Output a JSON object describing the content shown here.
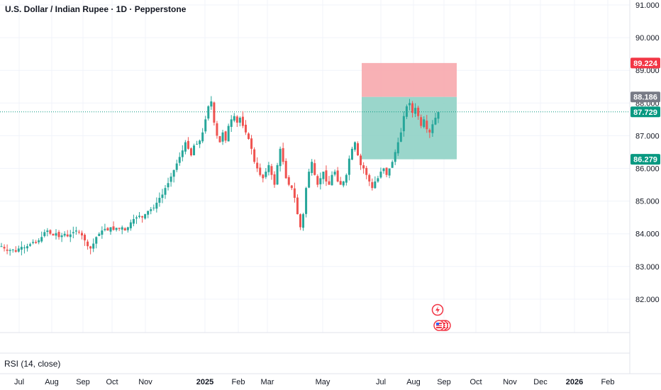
{
  "header": {
    "title": "U.S. Dollar / Indian Rupee · 1D · Pepperstone"
  },
  "indicator": {
    "label": "RSI (14, close)"
  },
  "colors": {
    "up": "#26a69a",
    "down": "#ef5350",
    "stop_zone": "#f7a9ad",
    "target_zone": "#8fd2c5",
    "stop_tag": "#f23645",
    "entry_tag": "#787b86",
    "current_tag": "#089981",
    "target_tag": "#089981"
  },
  "chart_data": {
    "type": "candlestick",
    "title": "U.S. Dollar / Indian Rupee · 1D · Pepperstone",
    "y_ticks": [
      "82.000",
      "83.000",
      "84.000",
      "85.000",
      "86.000",
      "87.000",
      "88.000",
      "89.000",
      "90.000",
      "91.000"
    ],
    "y_range": [
      81.0,
      91.0
    ],
    "x_ticks": [
      {
        "label": "Jul",
        "bold": false
      },
      {
        "label": "Aug",
        "bold": false
      },
      {
        "label": "Sep",
        "bold": false
      },
      {
        "label": "Oct",
        "bold": false
      },
      {
        "label": "Nov",
        "bold": false
      },
      {
        "label": "2025",
        "bold": true
      },
      {
        "label": "Feb",
        "bold": false
      },
      {
        "label": "Mar",
        "bold": false
      },
      {
        "label": "May",
        "bold": false
      },
      {
        "label": "Jul",
        "bold": false
      },
      {
        "label": "Aug",
        "bold": false
      },
      {
        "label": "Sep",
        "bold": false
      },
      {
        "label": "Oct",
        "bold": false
      },
      {
        "label": "Nov",
        "bold": false
      },
      {
        "label": "Dec",
        "bold": false
      },
      {
        "label": "2026",
        "bold": true
      },
      {
        "label": "Feb",
        "bold": false
      }
    ],
    "price_tags": {
      "stop": "89.224",
      "entry": "88.186",
      "current": "87.729",
      "target": "86.279"
    },
    "position": {
      "stop": 89.224,
      "entry": 88.186,
      "target": 86.279,
      "current": 87.729
    },
    "price_path": [
      83.62,
      83.55,
      83.48,
      83.5,
      83.52,
      83.45,
      83.55,
      83.6,
      83.58,
      83.62,
      83.68,
      83.75,
      83.72,
      83.8,
      83.9,
      84.05,
      84.1,
      84.0,
      83.95,
      84.02,
      83.9,
      83.95,
      84.0,
      83.92,
      83.98,
      84.05,
      84.1,
      84.05,
      83.95,
      83.8,
      83.62,
      83.55,
      83.7,
      83.9,
      84.0,
      84.1,
      84.15,
      84.1,
      84.2,
      84.12,
      84.18,
      84.15,
      84.2,
      84.1,
      84.2,
      84.35,
      84.45,
      84.5,
      84.55,
      84.5,
      84.6,
      84.7,
      84.75,
      84.8,
      84.95,
      85.1,
      85.2,
      85.4,
      85.55,
      85.75,
      85.95,
      86.15,
      86.35,
      86.55,
      86.8,
      86.6,
      86.4,
      86.7,
      86.75,
      86.85,
      87.1,
      87.5,
      87.9,
      88.05,
      87.4,
      87.0,
      86.8,
      87.1,
      86.85,
      87.3,
      87.5,
      87.6,
      87.4,
      87.55,
      87.3,
      87.1,
      86.9,
      86.6,
      86.2,
      86.0,
      85.8,
      85.7,
      85.9,
      86.1,
      85.8,
      85.5,
      86.1,
      86.6,
      86.2,
      85.7,
      85.5,
      85.4,
      85.1,
      84.6,
      84.2,
      84.6,
      85.4,
      85.9,
      86.2,
      85.8,
      85.5,
      85.7,
      85.9,
      85.6,
      85.5,
      85.8,
      85.9,
      85.6,
      85.5,
      85.6,
      85.8,
      86.3,
      86.6,
      86.8,
      86.4,
      86.1,
      86.0,
      85.8,
      85.6,
      85.4,
      85.6,
      85.7,
      85.9,
      86.0,
      85.8,
      86.0,
      86.2,
      86.5,
      86.8,
      87.1,
      87.6,
      87.9,
      88.0,
      87.7,
      87.85,
      87.6,
      87.3,
      87.5,
      87.2,
      87.1,
      87.35,
      87.55,
      87.729
    ]
  }
}
